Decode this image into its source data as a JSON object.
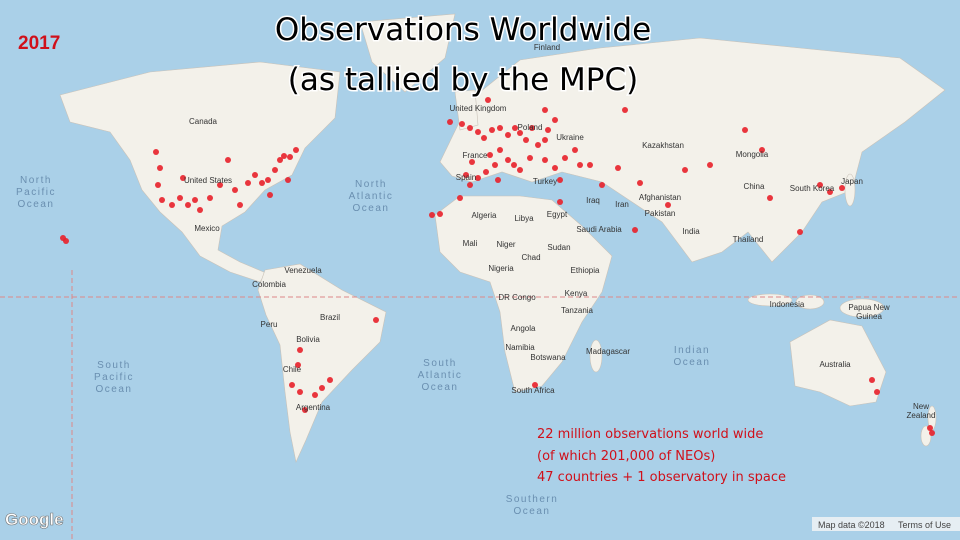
{
  "year": "2017",
  "title": [
    "Observations Worldwide",
    "(as tallied by the MPC)"
  ],
  "annotation": [
    "22 million observations world wide",
    "(of which 201,000 of NEOs)",
    " 47 countries + 1 observatory in space"
  ],
  "map_labels": [
    "Finland",
    "United Kingdom",
    "Poland",
    "Ukraine",
    "Kazakhstan",
    "Mongolia",
    "Canada",
    "France",
    "Spain",
    "Turkey",
    "China",
    "South Korea",
    "Japan",
    "United States",
    "Algeria",
    "Libya",
    "Egypt",
    "Iraq",
    "Iran",
    "Afghanistan",
    "Pakistan",
    "India",
    "Saudi Arabia",
    "Thailand",
    "Mexico",
    "Mali",
    "Niger",
    "Sudan",
    "Chad",
    "Nigeria",
    "Ethiopia",
    "Venezuela",
    "Colombia",
    "Kenya",
    "DR Congo",
    "Tanzania",
    "Indonesia",
    "Papua New",
    "Guinea",
    "Brazil",
    "Bolivia",
    "Peru",
    "Angola",
    "Namibia",
    "Botswana",
    "Madagascar",
    "Chile",
    "Argentina",
    "South Africa",
    "Australia",
    "New",
    "Zealand"
  ],
  "ocean_labels": [
    "North",
    "Pacific",
    "Ocean",
    "North",
    "Atlantic",
    "Ocean",
    "South",
    "Pacific",
    "Ocean",
    "South",
    "Atlantic",
    "Ocean",
    "Indian",
    "Ocean",
    "Southern",
    "Ocean"
  ],
  "footer": {
    "logo": "Google",
    "map_data": "Map data ©2018",
    "terms": "Terms of Use"
  }
}
